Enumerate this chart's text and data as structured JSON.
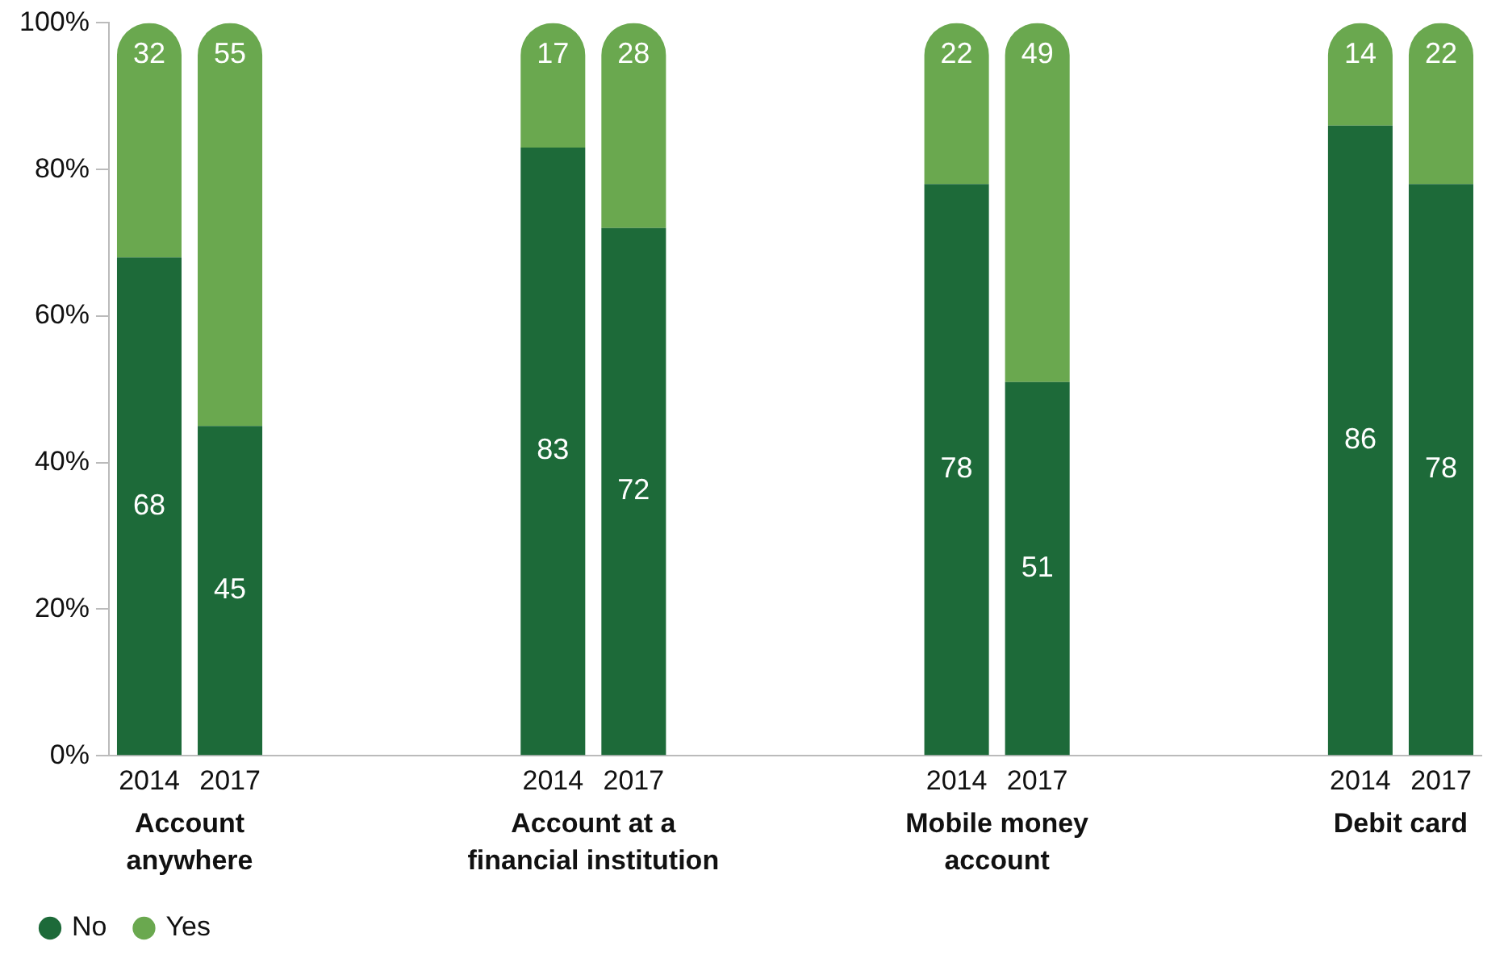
{
  "chart_data": {
    "type": "bar",
    "stacked": true,
    "data_labels": true,
    "categories": [
      "2014",
      "2017",
      null,
      null,
      null,
      "2014",
      "2017",
      null,
      null,
      null,
      "2014",
      "2017",
      null,
      null,
      null,
      "2014",
      "2017"
    ],
    "series": [
      {
        "name": "No",
        "color": "#1d6a39",
        "values": [
          68,
          45,
          null,
          null,
          null,
          83,
          72,
          null,
          null,
          null,
          78,
          51,
          null,
          null,
          null,
          86,
          78
        ]
      },
      {
        "name": "Yes",
        "color": "#6aa84f",
        "values": [
          32,
          55,
          null,
          null,
          null,
          17,
          28,
          null,
          null,
          null,
          22,
          49,
          null,
          null,
          null,
          14,
          22
        ]
      }
    ],
    "annotations": [
      "Account anywhere",
      "Account at a financial institution",
      "Mobile money account",
      "Debit card"
    ],
    "ylim": [
      0,
      100
    ],
    "yticks": [
      {
        "value": 0,
        "label": "0%"
      },
      {
        "value": 20,
        "label": "20%"
      },
      {
        "value": 40,
        "label": "40%"
      },
      {
        "value": 60,
        "label": "60%"
      },
      {
        "value": 80,
        "label": "80%"
      },
      {
        "value": 100,
        "label": "100%"
      }
    ],
    "grid": false,
    "legend": "bottom left"
  }
}
